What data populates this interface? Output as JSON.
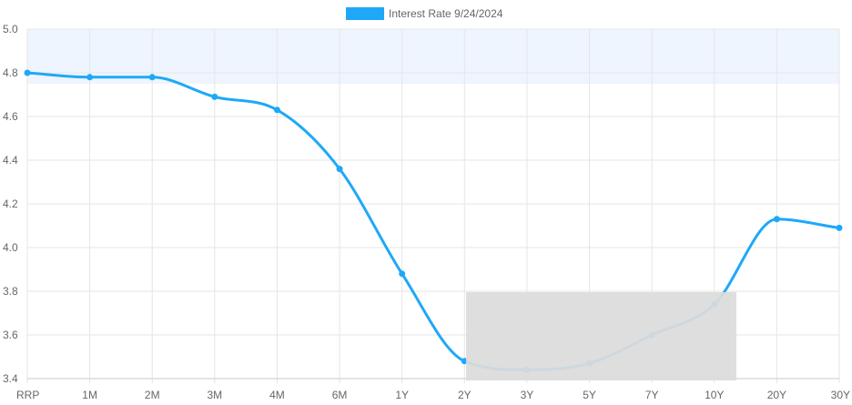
{
  "chart_data": {
    "type": "line",
    "categories": [
      "RRP",
      "1M",
      "2M",
      "3M",
      "4M",
      "6M",
      "1Y",
      "2Y",
      "3Y",
      "5Y",
      "7Y",
      "10Y",
      "20Y",
      "30Y"
    ],
    "series": [
      {
        "name": "Interest Rate 9/24/2024",
        "values": [
          4.8,
          4.78,
          4.78,
          4.69,
          4.63,
          4.36,
          3.88,
          3.48,
          3.44,
          3.47,
          3.6,
          3.74,
          4.13,
          4.09
        ],
        "color": "#1fa8f8"
      }
    ],
    "y_ticks": [
      "3.4",
      "3.6",
      "3.8",
      "4.0",
      "4.2",
      "4.4",
      "4.6",
      "4.8",
      "5.0"
    ],
    "ylim": [
      3.4,
      5.0
    ],
    "grid": true,
    "legend_position": "top-center",
    "highlight_band": {
      "from": 4.75,
      "to": 5.0,
      "color": "#eef5ff"
    },
    "overlay_color": "#dcdcdc"
  }
}
